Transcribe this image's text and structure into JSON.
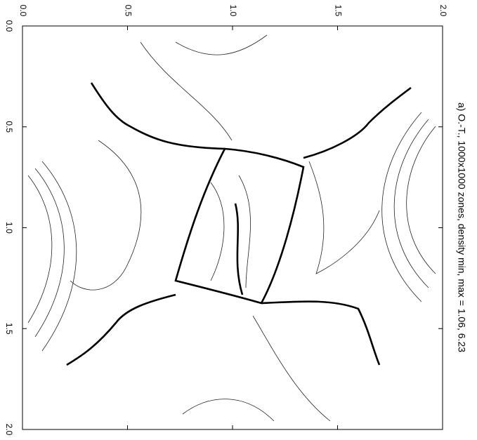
{
  "chart_data": {
    "type": "contour",
    "title": "a) O.-T., 1000x1000 zones, density min, max = 1.06, 6.23",
    "xlim": [
      0,
      2
    ],
    "xticks": [
      {
        "value": 0,
        "label": "0.0"
      },
      0.5,
      {
        "value": 1,
        "label": "1.0"
      },
      1.5,
      {
        "value": 2,
        "label": "2.0"
      }
    ],
    "ylim": [
      0,
      2
    ],
    "yticks": [
      {
        "value": 0,
        "label": "0.0"
      },
      0.5,
      {
        "value": 1,
        "label": "1.0"
      },
      1.5,
      {
        "value": 2,
        "label": "2.0"
      }
    ]
  }
}
